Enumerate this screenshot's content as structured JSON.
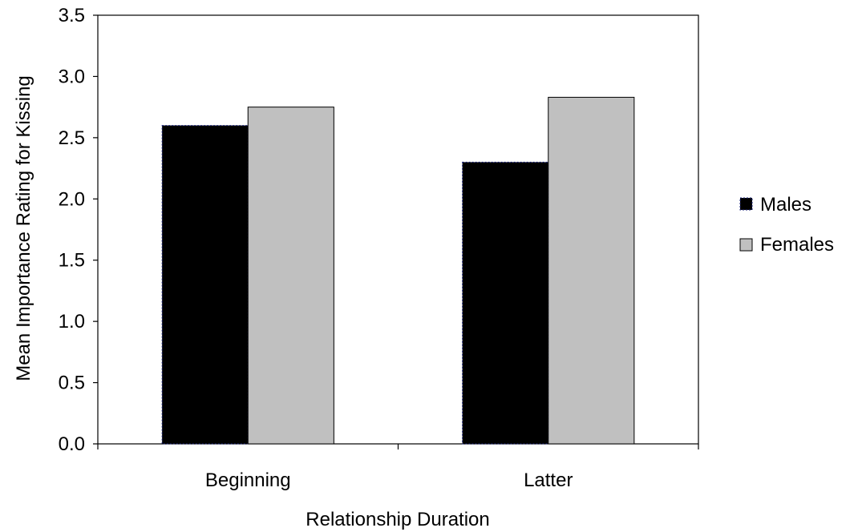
{
  "chart_data": {
    "type": "bar",
    "title": "",
    "xlabel": "Relationship Duration",
    "ylabel": "Mean Importance Rating for Kissing",
    "categories": [
      "Beginning",
      "Latter"
    ],
    "series": [
      {
        "name": "Males",
        "values": [
          2.6,
          2.3
        ],
        "color": "#000000"
      },
      {
        "name": "Females",
        "values": [
          2.75,
          2.83
        ],
        "color": "#c0c0c0"
      }
    ],
    "ylim": [
      0,
      3.5
    ],
    "yticks": [
      "0.0",
      "0.5",
      "1.0",
      "1.5",
      "2.0",
      "2.5",
      "3.0",
      "3.5"
    ],
    "grid": false,
    "legend_position": "right"
  }
}
